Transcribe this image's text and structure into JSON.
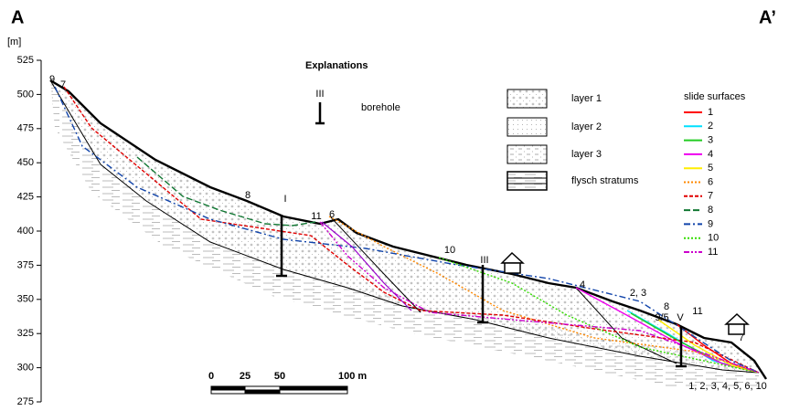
{
  "header": {
    "left": "A",
    "right": "A’"
  },
  "axis": {
    "unit": "[m]",
    "ticks": [
      525,
      500,
      475,
      450,
      425,
      400,
      375,
      350,
      325,
      300,
      275
    ]
  },
  "legend": {
    "title": "Explanations",
    "borehole": {
      "symbol": "III",
      "label": "borehole"
    },
    "layers": [
      "layer 1",
      "layer 2",
      "layer 3",
      "flysch stratums"
    ],
    "slide_surfaces": {
      "title": "slide surfaces",
      "items": [
        {
          "label": "1",
          "color": "#ff0000"
        },
        {
          "label": "2",
          "color": "#00e0ff"
        },
        {
          "label": "3",
          "color": "#22cc22"
        },
        {
          "label": "4",
          "color": "#ee00ee"
        },
        {
          "label": "5",
          "color": "#ffee00"
        },
        {
          "label": "6",
          "color": "#ff8800"
        },
        {
          "label": "7",
          "color": "#e00000"
        },
        {
          "label": "8",
          "color": "#117733"
        },
        {
          "label": "9",
          "color": "#1144aa"
        },
        {
          "label": "10",
          "color": "#33dd00"
        },
        {
          "label": "11",
          "color": "#cc00cc"
        }
      ]
    }
  },
  "scale_bar": {
    "labels": [
      "0",
      "25",
      "50",
      "100 m"
    ]
  },
  "boreholes": [
    "I",
    "III",
    "V"
  ],
  "surface_labels": [
    "9",
    "7",
    "8",
    "11",
    "6",
    "10",
    "4",
    "2, 3",
    "8",
    "9/5",
    "11",
    "7",
    "1, 2, 3, 4, 5, 6, 10"
  ]
}
